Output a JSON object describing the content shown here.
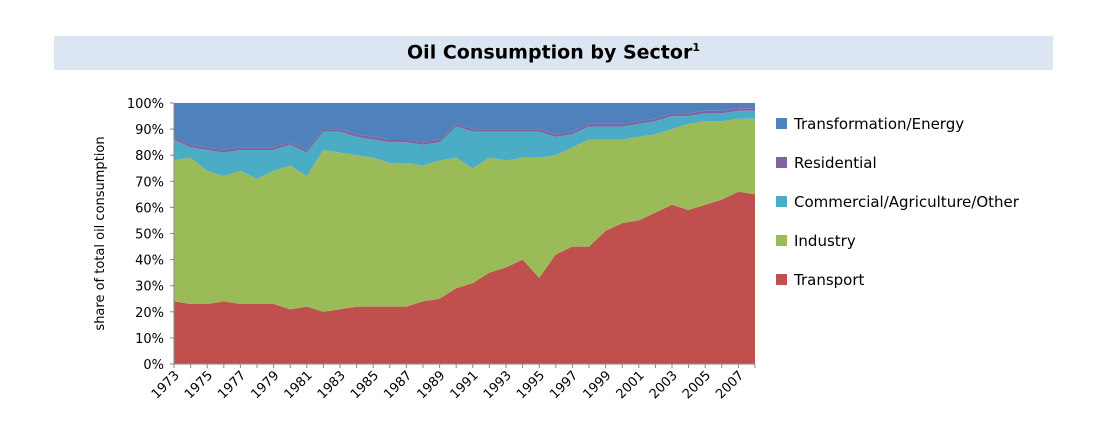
{
  "title": "Oil Consumption by Sector",
  "title_superscript": "1",
  "legend": [
    {
      "label": "Transformation/Energy",
      "color": "#4f81bd"
    },
    {
      "label": "Residential",
      "color": "#8064a2"
    },
    {
      "label": "Commercial/Agriculture/Other",
      "color": "#4bacc6"
    },
    {
      "label": "Industry",
      "color": "#9bbb59"
    },
    {
      "label": "Transport",
      "color": "#c0504d"
    }
  ],
  "chart_data": {
    "type": "area",
    "stacked": true,
    "title": "Oil Consumption by Sector",
    "ylabel": "share of total oil consumption",
    "xlabel": "",
    "ylim": [
      0,
      100
    ],
    "y_ticks": [
      "0%",
      "10%",
      "20%",
      "30%",
      "40%",
      "50%",
      "60%",
      "70%",
      "80%",
      "90%",
      "100%"
    ],
    "x_tick_labels": [
      "1973",
      "1975",
      "1977",
      "1979",
      "1981",
      "1983",
      "1985",
      "1987",
      "1989",
      "1991",
      "1993",
      "1995",
      "1997",
      "1999",
      "2001",
      "2003",
      "2005",
      "2007"
    ],
    "x": [
      1973,
      1974,
      1975,
      1976,
      1977,
      1978,
      1979,
      1980,
      1981,
      1982,
      1983,
      1984,
      1985,
      1986,
      1987,
      1988,
      1989,
      1990,
      1991,
      1992,
      1993,
      1994,
      1995,
      1996,
      1997,
      1998,
      1999,
      2000,
      2001,
      2002,
      2003,
      2004,
      2005,
      2006,
      2007,
      2008
    ],
    "series": [
      {
        "name": "Transport",
        "color": "#c0504d",
        "values": [
          24,
          23,
          23,
          24,
          23,
          23,
          23,
          21,
          22,
          20,
          21,
          22,
          22,
          22,
          22,
          24,
          25,
          29,
          31,
          35,
          37,
          40,
          33,
          42,
          45,
          45,
          51,
          54,
          55,
          58,
          61,
          59,
          61,
          63,
          66,
          65
        ]
      },
      {
        "name": "Industry",
        "color": "#9bbb59",
        "values": [
          54,
          56,
          51,
          48,
          51,
          48,
          51,
          55,
          50,
          62,
          60,
          58,
          57,
          55,
          55,
          52,
          53,
          50,
          44,
          44,
          41,
          39,
          46,
          38,
          38,
          41,
          35,
          32,
          32,
          30,
          29,
          33,
          32,
          30,
          28,
          29
        ]
      },
      {
        "name": "Commercial/Agriculture/Other",
        "color": "#4bacc6",
        "values": [
          8,
          4,
          8,
          9,
          8,
          11,
          8,
          8,
          9,
          7,
          8,
          7,
          7,
          8,
          8,
          8,
          7,
          12,
          14,
          10,
          11,
          10,
          10,
          7,
          5,
          5,
          5,
          5,
          5,
          5,
          5,
          3,
          3,
          3,
          3,
          3
        ]
      },
      {
        "name": "Residential",
        "color": "#8064a2",
        "values": [
          1,
          1,
          1,
          1,
          1,
          1,
          1,
          1,
          1,
          1,
          1,
          1,
          1,
          1,
          1,
          1,
          1,
          1,
          1,
          1,
          1,
          1,
          1,
          1,
          1,
          1,
          1,
          1,
          1,
          1,
          1,
          1,
          1,
          1,
          1,
          1
        ]
      },
      {
        "name": "Transformation/Energy",
        "color": "#4f81bd",
        "values": [
          13,
          16,
          17,
          18,
          17,
          17,
          17,
          15,
          18,
          10,
          10,
          12,
          13,
          14,
          14,
          15,
          14,
          8,
          10,
          10,
          10,
          10,
          10,
          12,
          11,
          8,
          8,
          8,
          7,
          6,
          4,
          4,
          3,
          3,
          2,
          2
        ]
      }
    ]
  }
}
